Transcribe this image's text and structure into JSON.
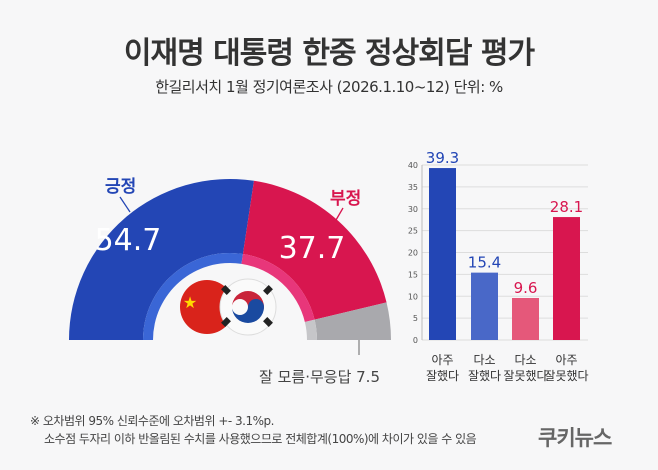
{
  "title": "이재명 대통령 한중 정상회담 평가",
  "subtitle": "한길리서치 1월 정기여론조사 (2026.1.10~12) 단위: %",
  "colors": {
    "positive": "#2346b5",
    "positive_light": "#3a66d6",
    "negative": "#d8164f",
    "negative_light": "#e8367a",
    "unknown": "#a9a9ad",
    "bar2": "#4968c8",
    "bar3": "#e5587a"
  },
  "chart_data": [
    {
      "type": "pie",
      "subtype": "half-donut",
      "categories": [
        "긍정",
        "부정",
        "잘 모름·무응답"
      ],
      "values": [
        54.7,
        37.7,
        7.5
      ],
      "labels": [
        "54.7",
        "37.7",
        "7.5"
      ],
      "unknown_label": "잘 모름·무응답 7.5",
      "icons": [
        "china-flag-icon",
        "korea-flag-icon"
      ]
    },
    {
      "type": "bar",
      "categories": [
        [
          "아주",
          "잘했다"
        ],
        [
          "다소",
          "잘했다"
        ],
        [
          "다소",
          "잘못했다"
        ],
        [
          "아주",
          "잘못했다"
        ]
      ],
      "values": [
        39.3,
        15.4,
        9.6,
        28.1
      ],
      "data_labels": [
        "39.3",
        "15.4",
        "9.6",
        "28.1"
      ],
      "ylim": [
        0,
        40
      ],
      "yticks": [
        "0",
        "5",
        "10",
        "15",
        "20",
        "25",
        "30",
        "35",
        "40"
      ],
      "grid": true
    }
  ],
  "notes": [
    "※ 오차범위 95% 신뢰수준에 오차범위 +- 3.1%p.",
    "소수점 두자리 이하 반올림된 수치를 사용했으므로 전체합계(100%)에 차이가 있을 수 있음"
  ],
  "logo": "쿠키뉴스"
}
